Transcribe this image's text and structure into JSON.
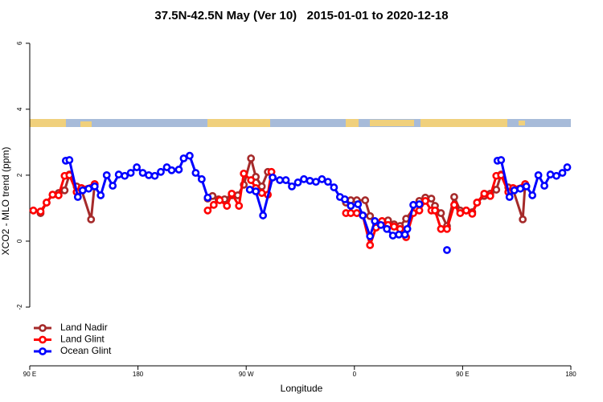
{
  "chart_data": {
    "type": "line",
    "title": "37.5N-42.5N May (Ver 10)   2015-01-01 to 2020-12-18",
    "x_label": "Longitude",
    "y_label": "XCO2 - MLO trend (ppm)",
    "xlim": [
      90,
      540
    ],
    "ylim": [
      -3.78,
      6.41
    ],
    "xticks": [
      {
        "value": 90,
        "label": "90 E"
      },
      180,
      {
        "value": 270,
        "label": "90 W"
      },
      {
        "value": 360,
        "label": "0"
      },
      {
        "value": 450,
        "label": "90 E"
      },
      {
        "value": 540,
        "label": "180"
      }
    ],
    "yticks": [
      6,
      4,
      2,
      0,
      -2
    ],
    "legend": "bottom-left",
    "series": [
      {
        "name": "Land Nadir",
        "color": "#a52a2a",
        "x": [
          99,
          104,
          109,
          114,
          119,
          123,
          129,
          133,
          141,
          144,
          null,
          238,
          242,
          247,
          252,
          258,
          263,
          268,
          274,
          278,
          283,
          288,
          292,
          null,
          353,
          357,
          362,
          369,
          373,
          378,
          383,
          388,
          393,
          398,
          403,
          414,
          419,
          424,
          427,
          432,
          437,
          443,
          448,
          453,
          458,
          462,
          468,
          473,
          478,
          482,
          488,
          492,
          500,
          502
        ],
        "values": [
          0.85,
          1.17,
          1.41,
          1.46,
          1.54,
          2.02,
          1.66,
          1.56,
          0.66,
          1.73,
          null,
          1.29,
          1.37,
          1.27,
          1.27,
          1.39,
          1.39,
          1.71,
          2.51,
          1.95,
          1.66,
          2.1,
          1.93,
          null,
          1.17,
          1.24,
          1.24,
          1.24,
          0.76,
          0.54,
          0.59,
          0.63,
          0.51,
          0.46,
          0.68,
          1.22,
          1.32,
          1.29,
          1.07,
          0.85,
          0.46,
          1.34,
          0.93,
          0.93,
          0.88,
          1.17,
          1.37,
          1.44,
          1.56,
          2.02,
          1.63,
          1.56,
          0.66,
          1.73
        ]
      },
      {
        "name": "Land Glint",
        "color": "#ff0000",
        "x": [
          93,
          99,
          104,
          109,
          114,
          119,
          123,
          129,
          133,
          144,
          null,
          238,
          243,
          248,
          254,
          258,
          264,
          268,
          274,
          278,
          283,
          288,
          291,
          null,
          353,
          357,
          362,
          367,
          373,
          378,
          383,
          388,
          393,
          398,
          403,
          409,
          414,
          419,
          424,
          427,
          432,
          437,
          443,
          448,
          453,
          458,
          462,
          468,
          473,
          478,
          482,
          488,
          492,
          502
        ],
        "values": [
          0.93,
          0.9,
          1.17,
          1.41,
          1.39,
          1.98,
          2.0,
          1.49,
          1.61,
          1.73,
          null,
          0.93,
          1.1,
          1.24,
          1.07,
          1.44,
          1.07,
          2.05,
          1.85,
          1.61,
          1.46,
          1.41,
          2.1,
          null,
          0.85,
          0.85,
          0.85,
          0.78,
          -0.12,
          0.41,
          0.61,
          0.49,
          0.44,
          0.37,
          0.12,
          0.85,
          0.93,
          1.22,
          0.93,
          0.93,
          0.37,
          0.37,
          1.1,
          0.85,
          0.93,
          0.83,
          1.17,
          1.44,
          1.37,
          1.98,
          2.0,
          1.49,
          1.61,
          1.73
        ]
      },
      {
        "name": "Ocean Glint",
        "color": "#0000ff",
        "x": [
          120,
          123,
          130,
          134,
          139,
          144,
          149,
          154,
          159,
          164,
          169,
          174,
          179,
          184,
          189,
          194,
          199,
          204,
          208,
          214,
          218,
          223,
          228,
          233,
          238,
          null,
          273,
          278,
          284,
          292,
          298,
          303,
          308,
          313,
          318,
          323,
          328,
          333,
          338,
          343,
          348,
          352,
          357,
          363,
          367,
          373,
          377,
          382,
          387,
          392,
          397,
          402,
          404,
          409,
          414,
          null,
          437,
          null,
          479,
          482,
          489,
          493,
          498,
          503,
          508,
          513,
          518,
          523,
          528,
          533,
          537
        ],
        "values": [
          2.44,
          2.46,
          1.34,
          1.54,
          1.59,
          1.66,
          1.39,
          2.0,
          1.68,
          2.02,
          1.98,
          2.07,
          2.24,
          2.07,
          2.0,
          1.98,
          2.1,
          2.24,
          2.15,
          2.17,
          2.51,
          2.59,
          2.07,
          1.88,
          1.32,
          null,
          1.56,
          1.51,
          0.78,
          1.93,
          1.85,
          1.85,
          1.66,
          1.78,
          1.88,
          1.83,
          1.8,
          1.88,
          1.8,
          1.63,
          1.34,
          1.27,
          1.07,
          1.12,
          0.78,
          0.15,
          0.61,
          0.49,
          0.37,
          0.17,
          0.2,
          0.2,
          0.37,
          1.1,
          1.12,
          null,
          -0.27,
          null,
          2.44,
          2.46,
          1.34,
          1.54,
          1.59,
          1.66,
          1.39,
          2.0,
          1.68,
          2.02,
          1.98,
          2.07,
          2.24
        ]
      }
    ]
  }
}
